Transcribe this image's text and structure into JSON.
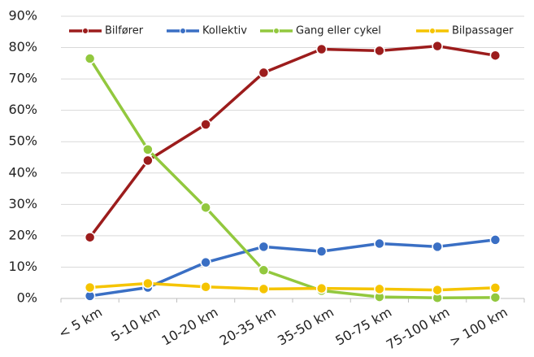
{
  "chart_data": {
    "type": "line",
    "categories": [
      "< 5 km",
      "5-10 km",
      "10-20 km",
      "20-35 km",
      "35-50 km",
      "50-75 km",
      "75-100 km",
      "> 100 km"
    ],
    "series": [
      {
        "name": "Bilfører",
        "color": "#9c1c1c",
        "values": [
          19.5,
          44,
          55.5,
          72,
          79.5,
          79,
          80.5,
          77.5
        ]
      },
      {
        "name": "Kollektiv",
        "color": "#3a6fc4",
        "values": [
          0.8,
          3.5,
          11.5,
          16.5,
          15,
          17.5,
          16.5,
          18.7
        ]
      },
      {
        "name": "Gang eller cykel",
        "color": "#92c83e",
        "values": [
          76.5,
          47.5,
          29,
          9,
          2.5,
          0.5,
          0.2,
          0.3
        ]
      },
      {
        "name": "Bilpassager",
        "color": "#f5c400",
        "values": [
          3.5,
          4.8,
          3.7,
          3,
          3.2,
          3,
          2.7,
          3.4
        ]
      }
    ],
    "ylim": [
      0,
      90
    ],
    "yticks": [
      {
        "value": 0,
        "label": "0%"
      },
      {
        "value": 10,
        "label": "10%"
      },
      {
        "value": 20,
        "label": "20%"
      },
      {
        "value": 30,
        "label": "30%"
      },
      {
        "value": 40,
        "label": "40%"
      },
      {
        "value": 50,
        "label": "50%"
      },
      {
        "value": 60,
        "label": "60%"
      },
      {
        "value": 70,
        "label": "70%"
      },
      {
        "value": 80,
        "label": "80%"
      },
      {
        "value": 90,
        "label": "90%"
      }
    ],
    "grid": true,
    "legend": "top"
  }
}
